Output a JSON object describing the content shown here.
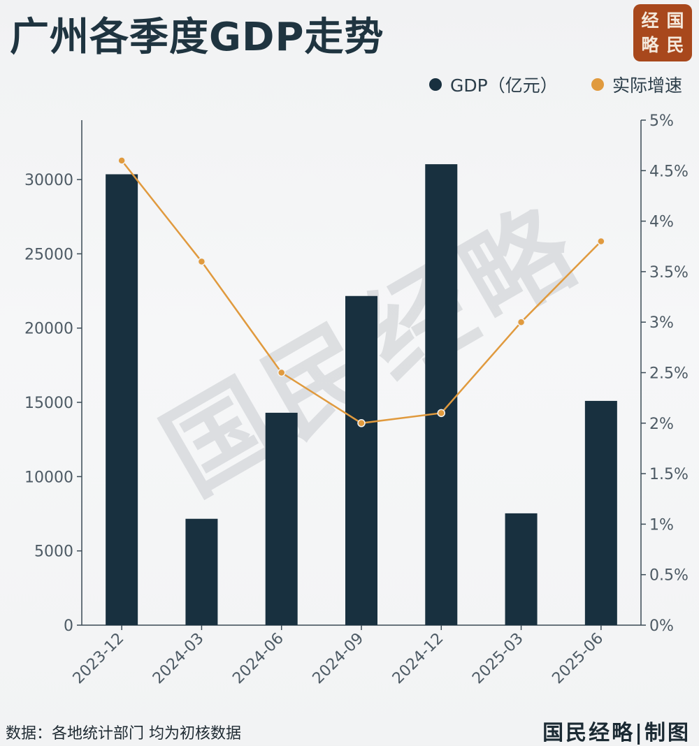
{
  "header": {
    "title": "广州各季度GDP走势",
    "seal_chars": [
      "经",
      "国",
      "略",
      "民"
    ]
  },
  "watermark": "国民经略",
  "footer": {
    "source": "数据：各地统计部门 均为初核数据",
    "brand": "国民经略|制图"
  },
  "colors": {
    "bar": "#18303f",
    "line": "#e09a3e",
    "axis": "#3a4a55",
    "text": "#4d5a64",
    "seal": "#a8481c"
  },
  "chart_data": {
    "type": "bar",
    "categories": [
      "2023-12",
      "2024-03",
      "2024-06",
      "2024-09",
      "2024-12",
      "2025-03",
      "2025-06"
    ],
    "series": [
      {
        "name": "GDP（亿元）",
        "type": "bar",
        "axis": "left",
        "values": [
          30356,
          7161,
          14300,
          22161,
          31033,
          7529,
          15099
        ]
      },
      {
        "name": "实际增速",
        "type": "line",
        "axis": "right",
        "values": [
          4.6,
          3.6,
          2.5,
          2.0,
          2.1,
          3.0,
          3.8
        ]
      }
    ],
    "y_left": {
      "min": 0,
      "max": 34000,
      "ticks": [
        "0",
        "5000",
        "10000",
        "15000",
        "20000",
        "25000",
        "30000"
      ]
    },
    "y_right": {
      "min": 0,
      "max": 5,
      "ticks": [
        "0%",
        "0.5%",
        "1%",
        "1.5%",
        "2%",
        "2.5%",
        "3%",
        "3.5%",
        "4%",
        "4.5%",
        "5%"
      ]
    },
    "legend_position": "top-right",
    "grid": false
  }
}
